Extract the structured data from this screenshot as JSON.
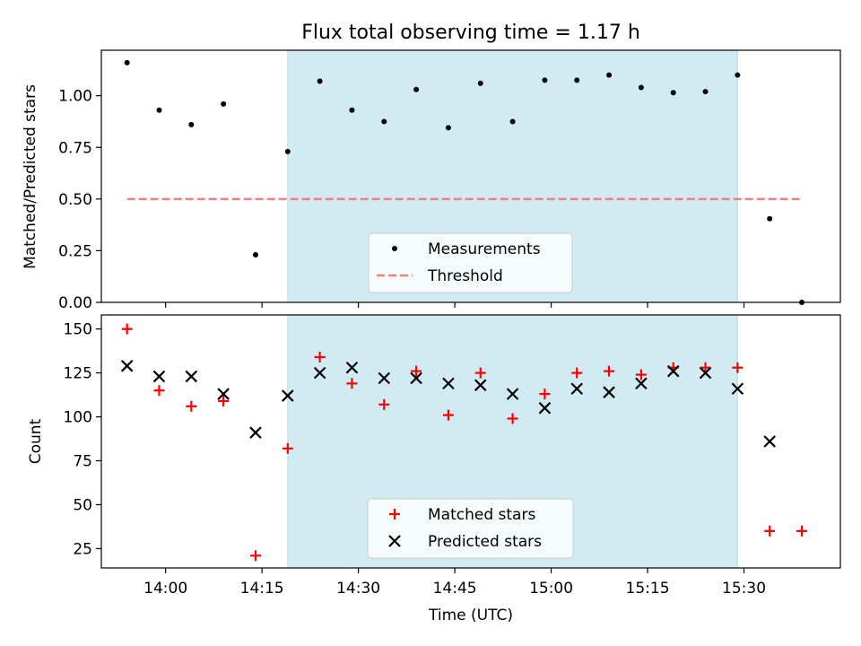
{
  "title": "Flux total observing time = 1.17 h",
  "colors": {
    "shade": "#add8e6",
    "threshold": "#f08080",
    "measurements": "#000000",
    "matched": "#ff0000",
    "predicted": "#000000"
  },
  "chart_data": [
    {
      "type": "scatter",
      "ylabel": "Matched/Predicted stars",
      "ylim": [
        0,
        1.22
      ],
      "yticks": [
        "0.00",
        "0.25",
        "0.50",
        "0.75",
        "1.00"
      ],
      "shaded_span": [
        "14:19",
        "15:29"
      ],
      "legend_position": "bottom-center",
      "series": [
        {
          "name": "Measurements",
          "marker": "dot",
          "points": [
            [
              "13:54",
              1.16
            ],
            [
              "13:59",
              0.93
            ],
            [
              "14:04",
              0.86
            ],
            [
              "14:09",
              0.96
            ],
            [
              "14:14",
              0.23
            ],
            [
              "14:19",
              0.73
            ],
            [
              "14:24",
              1.07
            ],
            [
              "14:29",
              0.93
            ],
            [
              "14:34",
              0.875
            ],
            [
              "14:39",
              1.03
            ],
            [
              "14:44",
              0.845
            ],
            [
              "14:49",
              1.06
            ],
            [
              "14:54",
              0.875
            ],
            [
              "14:59",
              1.075
            ],
            [
              "15:04",
              1.075
            ],
            [
              "15:09",
              1.1
            ],
            [
              "15:14",
              1.04
            ],
            [
              "15:19",
              1.015
            ],
            [
              "15:24",
              1.02
            ],
            [
              "15:29",
              1.1
            ],
            [
              "15:34",
              0.405
            ],
            [
              "15:39",
              0.0
            ]
          ]
        },
        {
          "name": "Threshold",
          "style": "dashed-line",
          "points": [
            [
              "13:54",
              0.5
            ],
            [
              "15:39",
              0.5
            ]
          ]
        }
      ]
    },
    {
      "type": "scatter",
      "xlabel": "Time (UTC)",
      "ylabel": "Count",
      "ylim": [
        14,
        158
      ],
      "yticks": [
        "25",
        "50",
        "75",
        "100",
        "125",
        "150"
      ],
      "xticks": [
        "14:00",
        "14:15",
        "14:30",
        "14:45",
        "15:00",
        "15:15",
        "15:30"
      ],
      "shaded_span": [
        "14:19",
        "15:29"
      ],
      "legend_position": "bottom-center",
      "series": [
        {
          "name": "Matched stars",
          "marker": "plus",
          "points": [
            [
              "13:54",
              150
            ],
            [
              "13:59",
              115
            ],
            [
              "14:04",
              106
            ],
            [
              "14:09",
              109
            ],
            [
              "14:14",
              21
            ],
            [
              "14:19",
              82
            ],
            [
              "14:24",
              134
            ],
            [
              "14:29",
              119
            ],
            [
              "14:34",
              107
            ],
            [
              "14:39",
              126
            ],
            [
              "14:44",
              101
            ],
            [
              "14:49",
              125
            ],
            [
              "14:54",
              99
            ],
            [
              "14:59",
              113
            ],
            [
              "15:04",
              125
            ],
            [
              "15:09",
              126
            ],
            [
              "15:14",
              124
            ],
            [
              "15:19",
              128
            ],
            [
              "15:24",
              128
            ],
            [
              "15:29",
              128
            ],
            [
              "15:34",
              35
            ],
            [
              "15:39",
              35
            ]
          ]
        },
        {
          "name": "Predicted stars",
          "marker": "x",
          "points": [
            [
              "13:54",
              129
            ],
            [
              "13:59",
              123
            ],
            [
              "14:04",
              123
            ],
            [
              "14:09",
              113
            ],
            [
              "14:14",
              91
            ],
            [
              "14:19",
              112
            ],
            [
              "14:24",
              125
            ],
            [
              "14:29",
              128
            ],
            [
              "14:34",
              122
            ],
            [
              "14:39",
              122
            ],
            [
              "14:44",
              119
            ],
            [
              "14:49",
              118
            ],
            [
              "14:54",
              113
            ],
            [
              "14:59",
              105
            ],
            [
              "15:04",
              116
            ],
            [
              "15:09",
              114
            ],
            [
              "15:14",
              119
            ],
            [
              "15:19",
              126
            ],
            [
              "15:24",
              125
            ],
            [
              "15:29",
              116
            ],
            [
              "15:34",
              86
            ]
          ]
        }
      ]
    }
  ]
}
